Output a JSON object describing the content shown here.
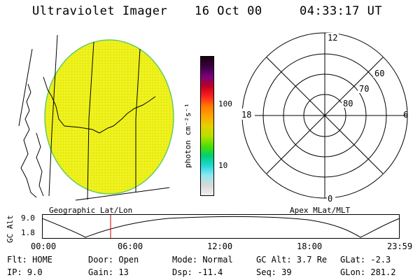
{
  "header": {
    "instrument": "Ultraviolet Imager",
    "date": "16 Oct 00",
    "time": "04:33:17 UT"
  },
  "colorbar": {
    "label": "photon cm⁻²s⁻¹",
    "ticks": [
      "100",
      "10"
    ],
    "scale": "log",
    "colors": [
      "#1a0010",
      "#3a0040",
      "#7a0080",
      "#c00020",
      "#ff2020",
      "#ff7a00",
      "#ffa500",
      "#e6d000",
      "#b8e000",
      "#50e000",
      "#00d070",
      "#20d8d8",
      "#90e8f0",
      "#d8d8d8",
      "#f0f0f0"
    ]
  },
  "map": {
    "fill_color": "#eef01a",
    "rim_color": "#66cc66"
  },
  "polar": {
    "mlt_labels": {
      "top": "12",
      "left": "18",
      "right": "6",
      "bottom": "0"
    },
    "lat_labels": [
      "60",
      "70",
      "80"
    ]
  },
  "timeline": {
    "left_caption": "Geographic Lat/Lon",
    "right_caption": "Apex MLat/MLT",
    "axis_label": "GC Alt",
    "y_ticks": [
      "9.0",
      "1.8"
    ],
    "x_ticks": [
      "00:00",
      "06:00",
      "12:00",
      "18:00",
      "23:59"
    ],
    "marker_color": "#cc0000"
  },
  "status": {
    "row1": {
      "flt": "Flt: HOME",
      "door": "Door: Open",
      "mode": "Mode: Normal",
      "gcalt": "GC Alt: 3.7 Re",
      "glat": "GLat:  -2.3"
    },
    "row2": {
      "ip": "IP:  9.0",
      "gain": "Gain: 13",
      "dsp": "Dsp:  -11.4",
      "seq": "Seq: 39",
      "glon": "GLon: 281.2"
    }
  }
}
